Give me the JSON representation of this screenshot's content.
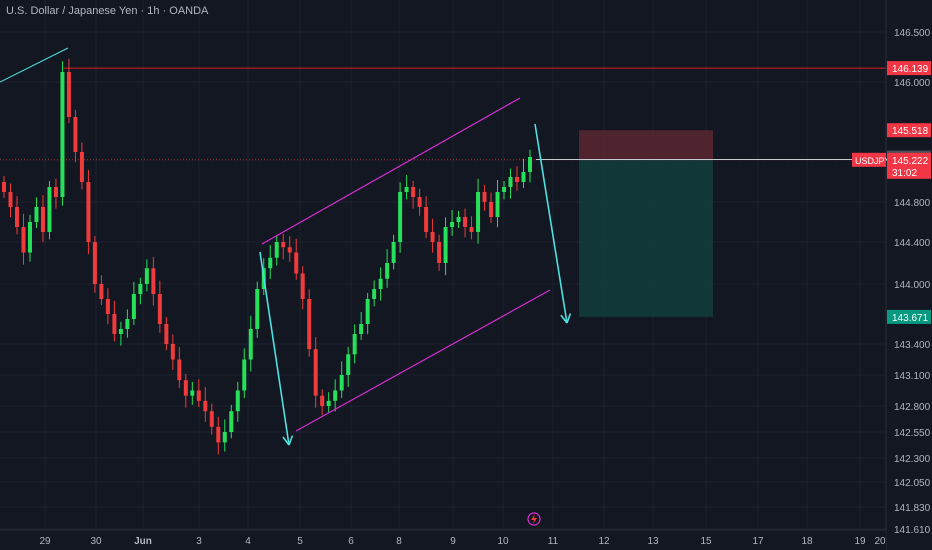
{
  "header": {
    "symbol_title": "U.S. Dollar / Japanese Yen · 1h · OANDA"
  },
  "colors": {
    "background": "#131722",
    "grid": "#1e222d",
    "bull": "#26e05a",
    "bear": "#ef3b3b",
    "channel": "#d62fd4",
    "arrow": "#4ee0e0",
    "resistance": "#e01e1e",
    "stop_zone": "#5a2730",
    "target_zone": "#123b3b",
    "label_red": "#f23645",
    "label_green": "#089981",
    "label_gray": "#4a4e58"
  },
  "chart_data": {
    "type": "candlestick",
    "symbol": "USDJPY",
    "timeframe": "1h",
    "x_tick_labels": [
      "29",
      "30",
      "Jun",
      "3",
      "4",
      "5",
      "6",
      "8",
      "9",
      "10",
      "11",
      "12",
      "13",
      "15",
      "17",
      "18",
      "19",
      "20"
    ],
    "y_tick_labels": [
      "146.500",
      "146.000",
      "144.800",
      "144.400",
      "144.000",
      "143.400",
      "143.100",
      "142.800",
      "142.550",
      "142.300",
      "142.050",
      "141.830",
      "141.610"
    ],
    "ylim": [
      141.61,
      146.62
    ],
    "close_approx": [
      144.9,
      144.75,
      144.55,
      144.3,
      144.6,
      144.75,
      144.5,
      144.95,
      144.85,
      146.1,
      145.65,
      145.3,
      145.0,
      144.4,
      144.0,
      143.85,
      143.7,
      143.5,
      143.55,
      143.65,
      143.9,
      144.0,
      144.15,
      143.9,
      143.6,
      143.4,
      143.25,
      143.05,
      142.9,
      142.95,
      142.85,
      142.75,
      142.6,
      142.45,
      142.55,
      142.75,
      142.95,
      143.25,
      143.55,
      143.95,
      144.15,
      144.25,
      144.4,
      144.35,
      144.3,
      144.1,
      143.85,
      143.35,
      142.9,
      142.8,
      142.85,
      142.95,
      143.1,
      143.3,
      143.5,
      143.6,
      143.85,
      143.95,
      144.05,
      144.2,
      144.4,
      144.9,
      144.95,
      144.85,
      144.75,
      144.5,
      144.4,
      144.2,
      144.55,
      144.6,
      144.65,
      144.55,
      144.5,
      144.9,
      144.8,
      144.65,
      144.9,
      144.95,
      145.05,
      145.0,
      145.1,
      145.25
    ],
    "last_price": 145.222,
    "levels": [
      {
        "label": "146.139",
        "kind": "resistance"
      },
      {
        "label": "145.518",
        "kind": "stop"
      },
      {
        "label": "145.225",
        "kind": "entry"
      },
      {
        "label": "145.225",
        "kind": "entry"
      },
      {
        "label": "143.671",
        "kind": "target"
      }
    ],
    "price_tag": {
      "symbol": "USDJPY",
      "price": "145.222",
      "countdown": "31:02"
    }
  }
}
